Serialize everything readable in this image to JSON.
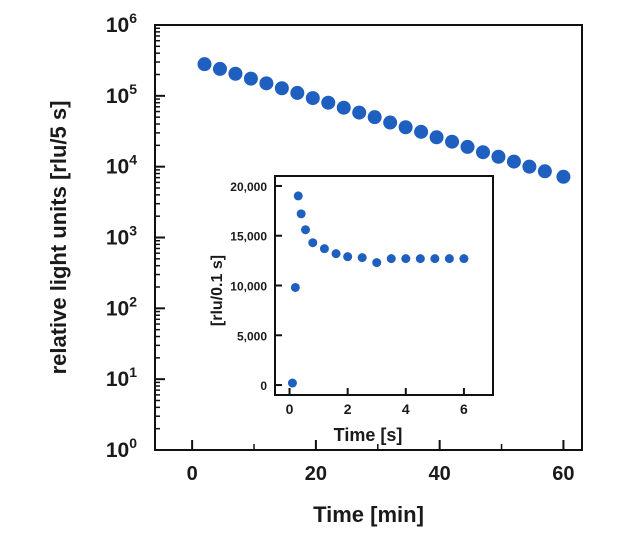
{
  "chart_data": [
    {
      "type": "scatter",
      "title": "",
      "xlabel": "Time [min]",
      "ylabel": "relative light units [rlu/5 s]",
      "y_scale": "log",
      "xlim": [
        -6,
        63
      ],
      "ylim": [
        1,
        1000000
      ],
      "grid": false,
      "marker_color": "#1f5fbf",
      "x_ticks": [
        0,
        20,
        40,
        60
      ],
      "x_tick_labels": [
        "0",
        "20",
        "40",
        "60"
      ],
      "y_ticks": [
        1,
        10,
        100,
        1000,
        10000,
        100000,
        1000000
      ],
      "y_tick_labels": [
        {
          "base": "10",
          "exp": "0"
        },
        {
          "base": "10",
          "exp": "1"
        },
        {
          "base": "10",
          "exp": "2"
        },
        {
          "base": "10",
          "exp": "3"
        },
        {
          "base": "10",
          "exp": "4"
        },
        {
          "base": "10",
          "exp": "5"
        },
        {
          "base": "10",
          "exp": "6"
        }
      ],
      "series": [
        {
          "x": [
            2,
            4.5,
            7,
            9.5,
            12,
            14.5,
            17,
            19.5,
            22,
            24.5,
            27,
            29.5,
            32,
            34.5,
            37,
            39.5,
            42,
            44.5,
            47,
            49.5,
            52,
            54.5,
            57,
            60
          ],
          "y": [
            280000,
            240000,
            205000,
            175000,
            150000,
            128000,
            110000,
            93000,
            80000,
            68000,
            58000,
            50000,
            42000,
            36000,
            31000,
            26000,
            22500,
            19000,
            16000,
            13800,
            11800,
            10000,
            8600,
            7200
          ]
        }
      ]
    },
    {
      "type": "scatter",
      "title": "",
      "inset": true,
      "xlabel": "Time [s]",
      "ylabel": "[rlu/0.1 s]",
      "xlim": [
        -0.5,
        7
      ],
      "ylim": [
        -1000,
        21000
      ],
      "grid": false,
      "marker_color": "#1f5fbf",
      "x_ticks": [
        0,
        2,
        4,
        6
      ],
      "x_tick_labels": [
        "0",
        "2",
        "4",
        "6"
      ],
      "y_ticks": [
        0,
        5000,
        10000,
        15000,
        20000
      ],
      "y_tick_labels": [
        "0",
        "5,000",
        "10,000",
        "15,000",
        "20,000"
      ],
      "series": [
        {
          "x": [
            0.1,
            0.2,
            0.3,
            0.4,
            0.55,
            0.8,
            1.2,
            1.6,
            2.0,
            2.5,
            3.0,
            3.5,
            4.0,
            4.5,
            5.0,
            5.5,
            6.0
          ],
          "y": [
            200,
            9800,
            19000,
            17200,
            15600,
            14300,
            13700,
            13200,
            12900,
            12800,
            12300,
            12700,
            12700,
            12700,
            12700,
            12700,
            12700
          ]
        }
      ]
    }
  ]
}
